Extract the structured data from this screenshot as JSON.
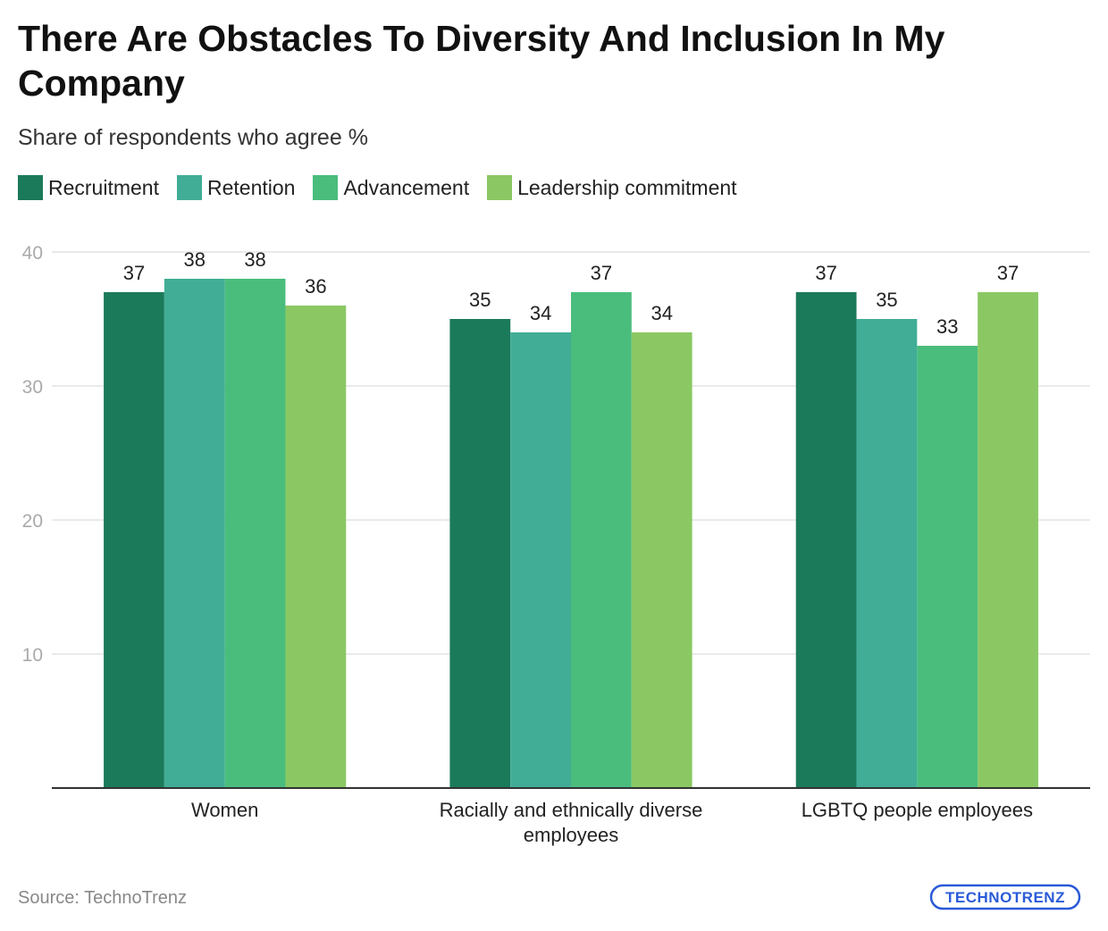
{
  "chart_data": {
    "type": "bar",
    "title": "There Are Obstacles To Diversity And Inclusion In My Company",
    "subtitle": "Share of respondents who agree %",
    "categories": [
      [
        "Women"
      ],
      [
        "Racially and ethnically diverse",
        "employees"
      ],
      [
        "LGBTQ people employees"
      ]
    ],
    "series": [
      {
        "name": "Recruitment",
        "color": "#1b7a5a",
        "values": [
          37,
          35,
          37
        ]
      },
      {
        "name": "Retention",
        "color": "#41ad96",
        "values": [
          38,
          34,
          35
        ]
      },
      {
        "name": "Advancement",
        "color": "#4abd7d",
        "values": [
          38,
          37,
          33
        ]
      },
      {
        "name": "Leadership commitment",
        "color": "#8bc863",
        "values": [
          36,
          34,
          37
        ]
      }
    ],
    "yticks": [
      10,
      20,
      30,
      40
    ],
    "ylim": [
      0,
      40
    ],
    "grid": true,
    "legend": "top-left",
    "xlabel": "",
    "ylabel": ""
  },
  "source": "Source: TechnoTrenz",
  "logo": {
    "text": "TECHNOTRENZ",
    "color": "#2a5bd7"
  }
}
